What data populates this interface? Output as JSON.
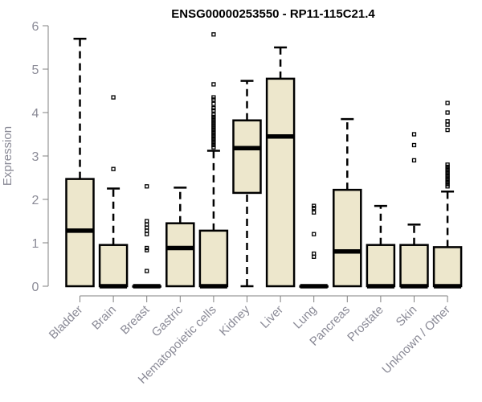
{
  "chart_data": {
    "type": "boxplot",
    "title": "ENSG00000253550 - RP11-115C21.4",
    "xlabel": "",
    "ylabel": "Expression",
    "ylim": [
      0,
      6
    ],
    "yticks": [
      "0",
      "1",
      "2",
      "3",
      "4",
      "5",
      "6"
    ],
    "box_color": "#ede7cc",
    "categories": [
      "Bladder",
      "Brain",
      "Breast",
      "Gastric",
      "Hematopoietic cells",
      "Kidney",
      "Liver",
      "Lung",
      "Pancreas",
      "Prostate",
      "Skin",
      "Unknown / Other"
    ],
    "boxes": [
      {
        "min": 0,
        "q1": 0,
        "median": 1.28,
        "q3": 2.47,
        "max": 5.7,
        "outliers": []
      },
      {
        "min": 0,
        "q1": 0,
        "median": 0,
        "q3": 0.95,
        "max": 2.25,
        "outliers": [
          4.35,
          2.7
        ]
      },
      {
        "min": 0,
        "q1": 0,
        "median": 0,
        "q3": 0,
        "max": 0,
        "outliers": [
          2.3,
          1.5,
          1.42,
          1.35,
          1.28,
          1.2,
          0.88,
          0.83,
          0.35
        ]
      },
      {
        "min": 0,
        "q1": 0,
        "median": 0.88,
        "q3": 1.45,
        "max": 2.27,
        "outliers": []
      },
      {
        "min": 0,
        "q1": 0,
        "median": 0,
        "q3": 1.28,
        "max": 3.12,
        "outliers": [
          5.8,
          4.65,
          4.35,
          4.3,
          4.2,
          4.1,
          4.05,
          3.95,
          3.9,
          3.85,
          3.8,
          3.75,
          3.7,
          3.65,
          3.6,
          3.55,
          3.5,
          3.45,
          3.4,
          3.35,
          3.3,
          3.25,
          3.2
        ]
      },
      {
        "min": 0,
        "q1": 2.15,
        "median": 3.18,
        "q3": 3.82,
        "max": 4.73,
        "outliers": []
      },
      {
        "min": 0,
        "q1": 0,
        "median": 3.45,
        "q3": 4.78,
        "max": 5.5,
        "outliers": []
      },
      {
        "min": 0,
        "q1": 0,
        "median": 0,
        "q3": 0,
        "max": 0,
        "outliers": [
          1.85,
          1.8,
          1.7,
          1.2,
          0.75,
          0.68
        ]
      },
      {
        "min": 0,
        "q1": 0,
        "median": 0.8,
        "q3": 2.22,
        "max": 3.85,
        "outliers": []
      },
      {
        "min": 0,
        "q1": 0,
        "median": 0,
        "q3": 0.95,
        "max": 1.85,
        "outliers": []
      },
      {
        "min": 0,
        "q1": 0,
        "median": 0,
        "q3": 0.95,
        "max": 1.42,
        "outliers": [
          3.5,
          3.25,
          2.9
        ]
      },
      {
        "min": 0,
        "q1": 0,
        "median": 0,
        "q3": 0.9,
        "max": 2.18,
        "outliers": [
          4.22,
          4.0,
          3.8,
          3.72,
          3.6,
          2.8,
          2.75,
          2.7,
          2.65,
          2.6,
          2.55,
          2.5,
          2.45,
          2.4,
          2.35,
          2.3
        ]
      }
    ]
  }
}
